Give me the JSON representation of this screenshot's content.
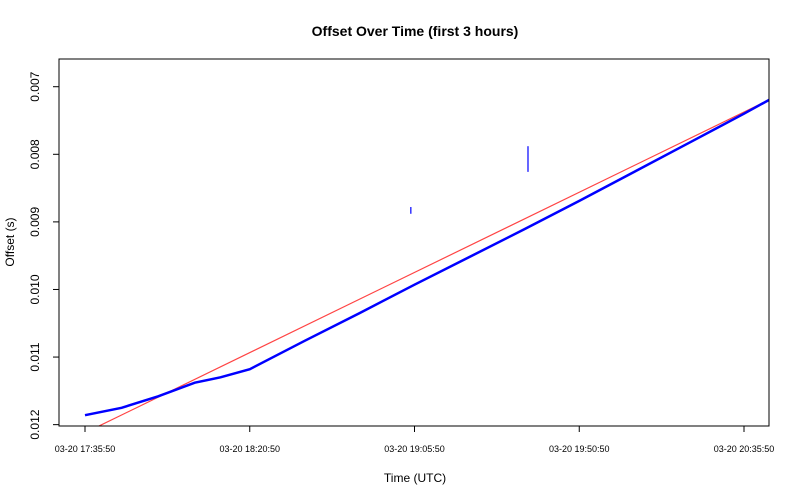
{
  "chart_data": {
    "type": "line",
    "title": "Offset Over Time (first 3 hours)",
    "xlabel": "Time (UTC)",
    "ylabel": "Offset (s)",
    "x_ticks": [
      "03-20 17:35:50",
      "03-20 18:20:50",
      "03-20 19:05:50",
      "03-20 19:50:50",
      "03-20 20:35:50"
    ],
    "y_ticks": [
      "0.007",
      "0.008",
      "0.009",
      "0.010",
      "0.011",
      "0.012"
    ],
    "y_tick_values": [
      0.007,
      0.008,
      0.009,
      0.01,
      0.011,
      0.012
    ],
    "ylim": [
      0.01202,
      0.00659
    ],
    "y_reversed": true,
    "series": [
      {
        "color": "#0000ff",
        "x": [
          "03-20 17:35:50",
          "03-20 17:45:50",
          "03-20 17:55:50",
          "03-20 18:05:50",
          "03-20 18:12:50",
          "03-20 18:20:50",
          "03-20 18:35:50",
          "03-20 18:50:50",
          "03-20 19:05:50",
          "03-20 19:20:50",
          "03-20 19:35:50",
          "03-20 19:50:50",
          "03-20 20:05:50",
          "03-20 20:20:50",
          "03-20 20:35:50",
          "03-20 20:42:50"
        ],
        "y": [
          0.01186,
          0.01175,
          0.01158,
          0.01138,
          0.0113,
          0.01118,
          0.01076,
          0.01035,
          0.00993,
          0.00952,
          0.00911,
          0.00869,
          0.00826,
          0.00783,
          0.0074,
          0.00719
        ]
      },
      {
        "color": "#ff4444",
        "x": [
          "03-20 17:35:50",
          "03-20 20:42:50"
        ],
        "y": [
          0.01212,
          0.00719
        ]
      }
    ],
    "spikes": [
      {
        "x": "03-20 19:36:50",
        "y_top": 0.00788,
        "y_bottom": 0.00826
      },
      {
        "x": "03-20 19:04:50",
        "y_top": 0.00878,
        "y_bottom": 0.00888
      }
    ],
    "grid": false,
    "legend": "none"
  }
}
